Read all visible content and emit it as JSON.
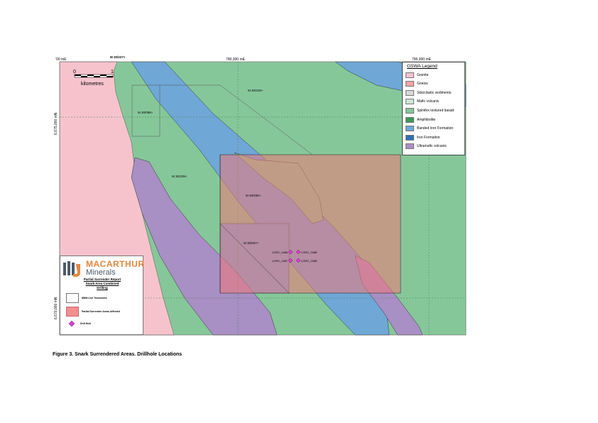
{
  "map": {
    "coords": {
      "left_easting": "’00 mE",
      "mid_easting": "790,000 mE",
      "right_easting": "795,000 mE",
      "northing_top": "6,675,000 mN",
      "northing_bottom": "6,670,000 mN"
    },
    "scale": {
      "zero": "0",
      "one": "1",
      "unit": "kilometres"
    },
    "tenements": [
      {
        "label": "M 30/227+"
      },
      {
        "label": "M 30/229+"
      },
      {
        "label": "M 30/088+"
      },
      {
        "label": "M 30/228+"
      },
      {
        "label": "M 30/206+"
      },
      {
        "label": "M 30/207+"
      }
    ],
    "drillholes": [
      {
        "label": "LGRC_0486"
      },
      {
        "label": "LGRC_0488"
      },
      {
        "label": "LGRC_0487"
      },
      {
        "label": "LGRC_0488"
      }
    ],
    "colors": {
      "granite": "#f6c3cc",
      "gneiss": "#f2a3ab",
      "siliciclastic": "#d8d8d8",
      "mafic": "#cde6d4",
      "spinifex": "#86c79a",
      "amphibolite": "#3c9a52",
      "bif": "#6fa7d6",
      "iron": "#2f6fb5",
      "ultramafic": "#a88fc4",
      "surrender": "rgba(240,120,120,0.55)",
      "drillhole": "#e23ad9"
    }
  },
  "legend": {
    "title": "GSWA Legend",
    "items": [
      {
        "label": "Granite",
        "color": "#f6c3cc"
      },
      {
        "label": "Gneiss",
        "color": "#f2a3ab"
      },
      {
        "label": "Siliciclastic sediments",
        "color": "#d8d8d8"
      },
      {
        "label": "Mafic volcanic",
        "color": "#cde6d4"
      },
      {
        "label": "Spinifex textured basalt",
        "color": "#86c79a"
      },
      {
        "label": "Amphibolite",
        "color": "#3c9a52"
      },
      {
        "label": "Banded Iron Formation",
        "color": "#6fa7d6"
      },
      {
        "label": "Iron Formation",
        "color": "#2f6fb5"
      },
      {
        "label": "Ultramafic volcanic",
        "color": "#a88fc4"
      }
    ]
  },
  "report": {
    "logo_name": "MACARTHUR",
    "logo_sub": "Minerals",
    "line1": "Partial Surrender Report",
    "line2": "Snark Area Combined",
    "line3": "Drilling",
    "key": [
      {
        "label": "MMH Live Tenements"
      },
      {
        "label": "Partial Surrender Areas Affected"
      },
      {
        "label": "Drill Hole"
      }
    ]
  },
  "caption": "Figure 3. Snark Surrendered Areas. Drillhole Locations"
}
